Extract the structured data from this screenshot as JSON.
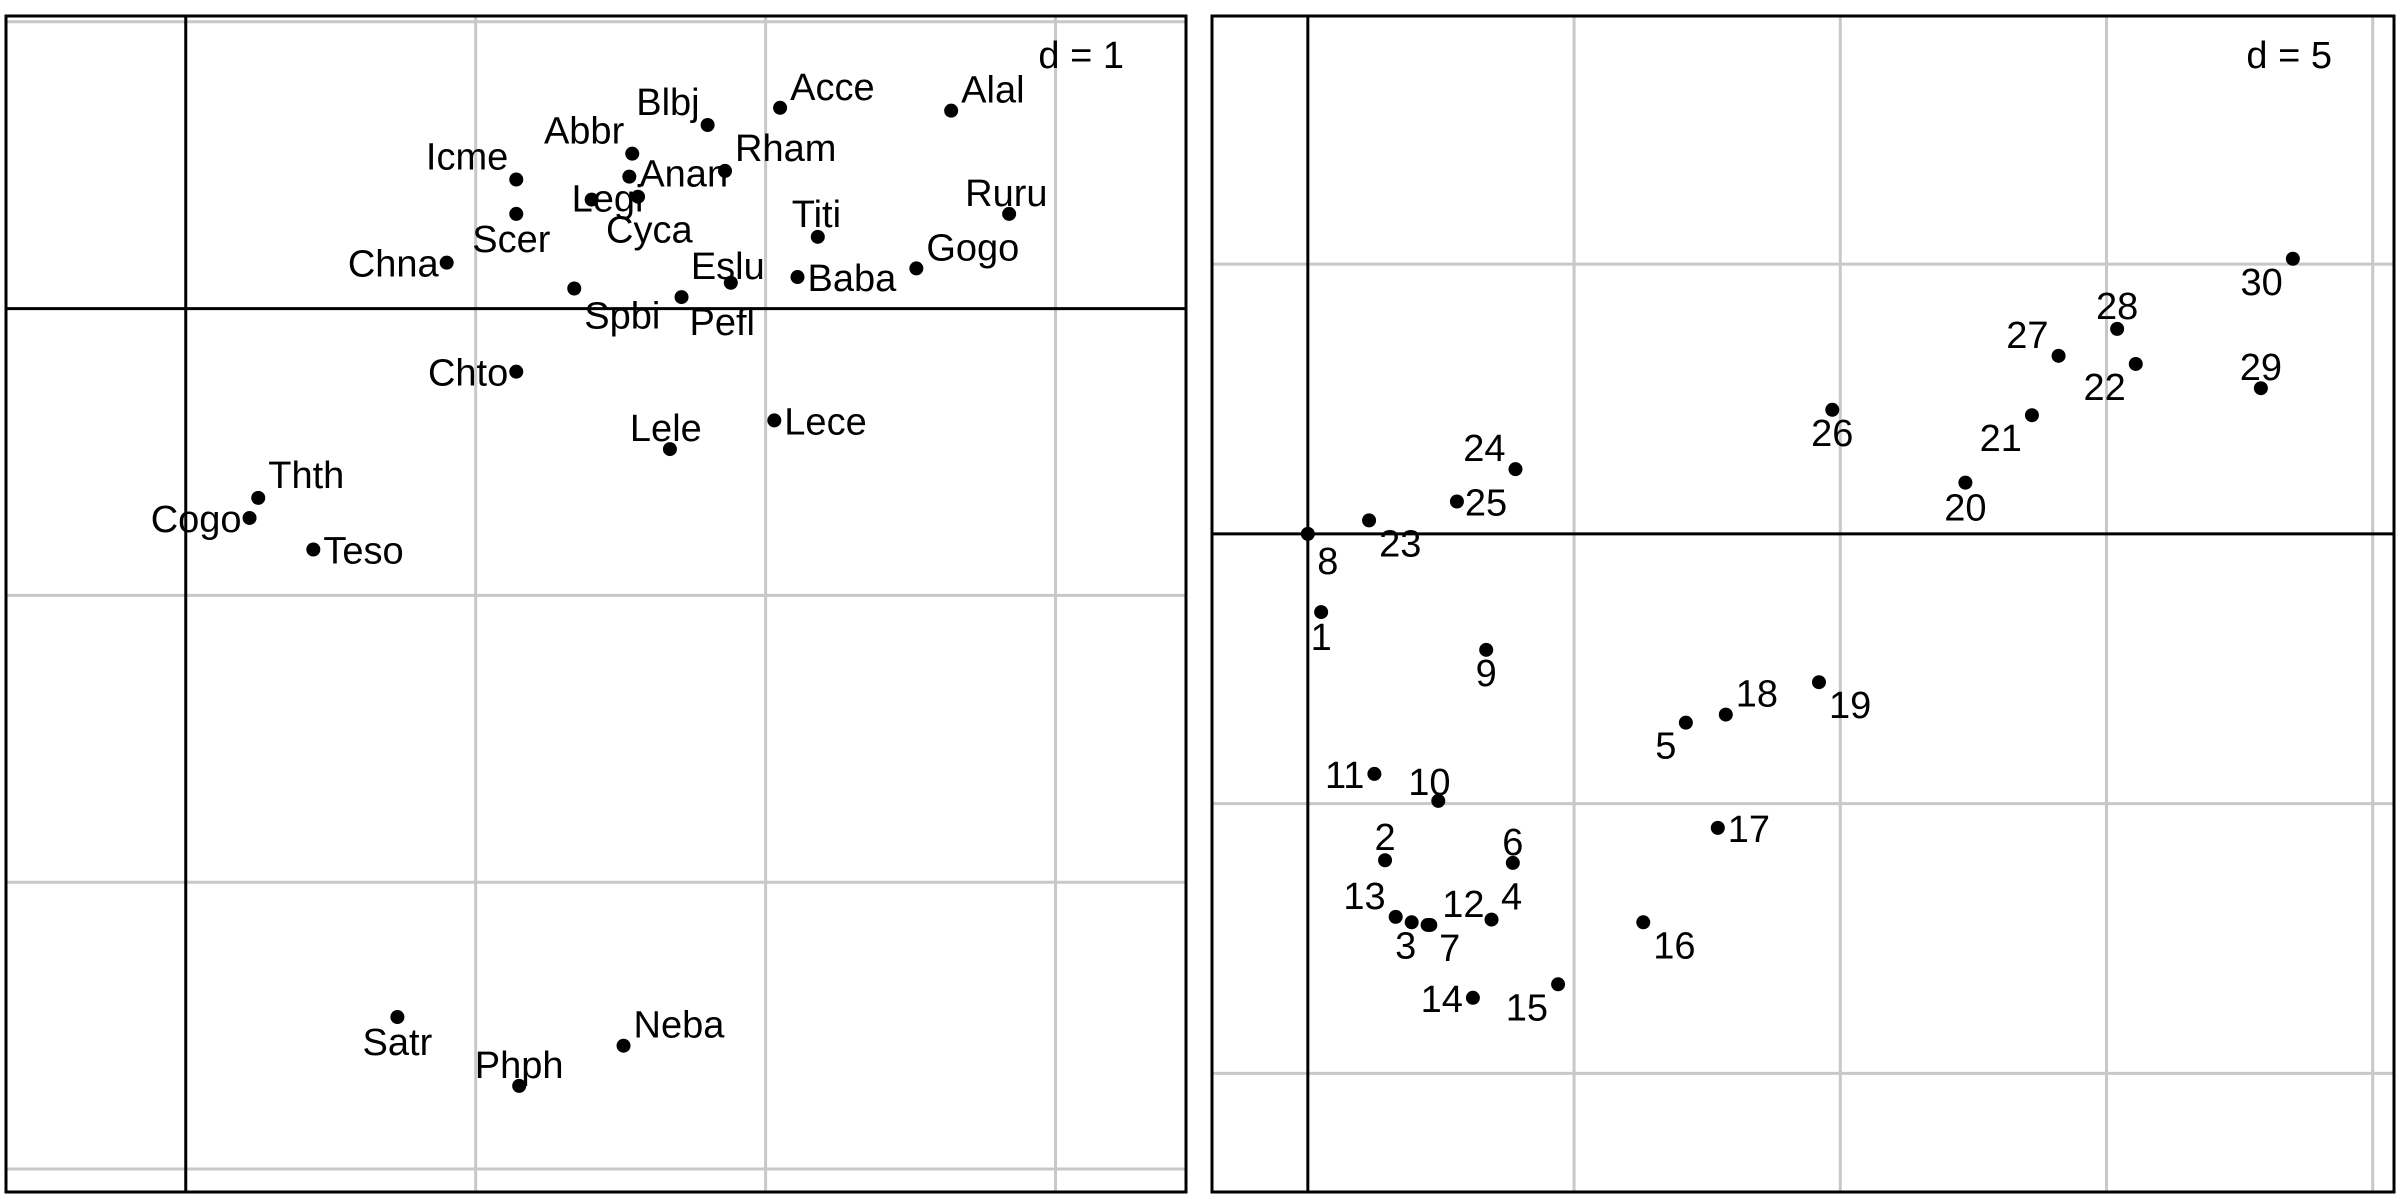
{
  "chart_data": [
    {
      "type": "scatter",
      "grid_label": "d = 1",
      "grid": true,
      "xlim": [
        -0.62,
        3.45
      ],
      "ylim": [
        -3.08,
        1.02
      ],
      "points": [
        {
          "label": "Alal",
          "x": 2.64,
          "y": 0.69
        },
        {
          "label": "Acce",
          "x": 2.05,
          "y": 0.7
        },
        {
          "label": "Blbj",
          "x": 1.8,
          "y": 0.64
        },
        {
          "label": "Rham",
          "x": 1.86,
          "y": 0.48
        },
        {
          "label": "Abbr",
          "x": 1.54,
          "y": 0.54
        },
        {
          "label": "Icme",
          "x": 1.14,
          "y": 0.45
        },
        {
          "label": "Anan",
          "x": 1.53,
          "y": 0.46
        },
        {
          "label": "Legi",
          "x": 1.4,
          "y": 0.38
        },
        {
          "label": "Cyca",
          "x": 1.56,
          "y": 0.39
        },
        {
          "label": "Ruru",
          "x": 2.84,
          "y": 0.33
        },
        {
          "label": "Scer",
          "x": 1.14,
          "y": 0.33
        },
        {
          "label": "Titi",
          "x": 2.18,
          "y": 0.25
        },
        {
          "label": "Chna",
          "x": 0.9,
          "y": 0.16
        },
        {
          "label": "Gogo",
          "x": 2.52,
          "y": 0.14
        },
        {
          "label": "Eslu",
          "x": 1.88,
          "y": 0.09
        },
        {
          "label": "Baba",
          "x": 2.11,
          "y": 0.11
        },
        {
          "label": "Spbi",
          "x": 1.34,
          "y": 0.07
        },
        {
          "label": "Pefl",
          "x": 1.71,
          "y": 0.04
        },
        {
          "label": "Chto",
          "x": 1.14,
          "y": -0.22
        },
        {
          "label": "Lece",
          "x": 2.03,
          "y": -0.39
        },
        {
          "label": "Lele",
          "x": 1.67,
          "y": -0.49
        },
        {
          "label": "Thth",
          "x": 0.25,
          "y": -0.66
        },
        {
          "label": "Cogo",
          "x": 0.22,
          "y": -0.73
        },
        {
          "label": "Teso",
          "x": 0.44,
          "y": -0.84
        },
        {
          "label": "Satr",
          "x": 0.73,
          "y": -2.47
        },
        {
          "label": "Neba",
          "x": 1.51,
          "y": -2.57
        },
        {
          "label": "Phph",
          "x": 1.15,
          "y": -2.71
        }
      ]
    },
    {
      "type": "scatter",
      "grid_label": "d = 5",
      "grid": true,
      "xlim": [
        -1.8,
        20.4
      ],
      "ylim": [
        -12.2,
        9.6
      ],
      "points": [
        {
          "label": "1",
          "x": 0.25,
          "y": -1.45
        },
        {
          "label": "2",
          "x": 1.45,
          "y": -6.05
        },
        {
          "label": "3",
          "x": 1.95,
          "y": -7.2
        },
        {
          "label": "4",
          "x": 3.45,
          "y": -7.15
        },
        {
          "label": "5",
          "x": 7.1,
          "y": -3.5
        },
        {
          "label": "6",
          "x": 3.85,
          "y": -6.1
        },
        {
          "label": "7",
          "x": 2.25,
          "y": -7.25
        },
        {
          "label": "8",
          "x": 0.0,
          "y": 0.0
        },
        {
          "label": "9",
          "x": 3.35,
          "y": -2.15
        },
        {
          "label": "10",
          "x": 2.45,
          "y": -4.95
        },
        {
          "label": "11",
          "x": 1.25,
          "y": -4.45
        },
        {
          "label": "12",
          "x": 2.3,
          "y": -7.25
        },
        {
          "label": "13",
          "x": 1.65,
          "y": -7.1
        },
        {
          "label": "14",
          "x": 3.1,
          "y": -8.6
        },
        {
          "label": "15",
          "x": 4.7,
          "y": -8.35
        },
        {
          "label": "16",
          "x": 6.3,
          "y": -7.2
        },
        {
          "label": "17",
          "x": 7.7,
          "y": -5.45
        },
        {
          "label": "18",
          "x": 7.85,
          "y": -3.35
        },
        {
          "label": "19",
          "x": 9.6,
          "y": -2.75
        },
        {
          "label": "20",
          "x": 12.35,
          "y": 0.95
        },
        {
          "label": "21",
          "x": 13.6,
          "y": 2.2
        },
        {
          "label": "22",
          "x": 15.55,
          "y": 3.15
        },
        {
          "label": "23",
          "x": 1.15,
          "y": 0.25
        },
        {
          "label": "24",
          "x": 3.9,
          "y": 1.2
        },
        {
          "label": "25",
          "x": 2.8,
          "y": 0.6
        },
        {
          "label": "26",
          "x": 9.85,
          "y": 2.3
        },
        {
          "label": "27",
          "x": 14.1,
          "y": 3.3
        },
        {
          "label": "28",
          "x": 15.2,
          "y": 3.8
        },
        {
          "label": "29",
          "x": 17.9,
          "y": 2.7
        },
        {
          "label": "30",
          "x": 18.5,
          "y": 5.1
        }
      ]
    }
  ]
}
